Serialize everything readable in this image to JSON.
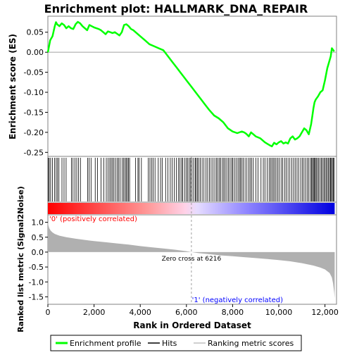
{
  "chart_data": {
    "type": "line",
    "title": "Enrichment plot: HALLMARK_DNA_REPAIR",
    "xlabel": "Rank in Ordered Dataset",
    "xlim": [
      0,
      12500
    ],
    "x_ticks": [
      0,
      2000,
      4000,
      6000,
      8000,
      10000,
      12000
    ],
    "x_tick_labels": [
      "0",
      "2,000",
      "4,000",
      "6,000",
      "8,000",
      "10,000",
      "12,000"
    ],
    "es_panel": {
      "ylabel": "Enrichment score (ES)",
      "ylim": [
        -0.26,
        0.09
      ],
      "y_ticks": [
        0.05,
        0.0,
        -0.05,
        -0.1,
        -0.15,
        -0.2,
        -0.25
      ],
      "y_tick_labels": [
        "0.05",
        "0.00",
        "-0.05",
        "-0.10",
        "-0.15",
        "-0.20",
        "-0.25"
      ],
      "series": [
        {
          "name": "Enrichment profile",
          "color": "#00ff00",
          "x": [
            0,
            100,
            200,
            300,
            350,
            400,
            500,
            600,
            700,
            800,
            900,
            1000,
            1100,
            1200,
            1300,
            1400,
            1500,
            1600,
            1700,
            1800,
            1900,
            2000,
            2100,
            2200,
            2300,
            2400,
            2500,
            2600,
            2700,
            2800,
            2900,
            3000,
            3100,
            3200,
            3300,
            3400,
            3500,
            3600,
            3700,
            3800,
            3900,
            4000,
            4200,
            4400,
            4600,
            4800,
            5000,
            5200,
            5400,
            5600,
            5800,
            6000,
            6200,
            6400,
            6600,
            6800,
            7000,
            7200,
            7400,
            7600,
            7800,
            8000,
            8200,
            8400,
            8500,
            8600,
            8700,
            8800,
            8900,
            9000,
            9200,
            9400,
            9600,
            9700,
            9800,
            9900,
            10000,
            10100,
            10200,
            10300,
            10400,
            10500,
            10600,
            10700,
            10800,
            10900,
            11000,
            11100,
            11200,
            11300,
            11400,
            11450,
            11500,
            11550,
            11600,
            11700,
            11800,
            11900,
            12000,
            12100,
            12200,
            12250,
            12300,
            12400
          ],
          "y": [
            0.0,
            0.03,
            0.04,
            0.065,
            0.075,
            0.07,
            0.065,
            0.072,
            0.068,
            0.06,
            0.065,
            0.06,
            0.058,
            0.07,
            0.076,
            0.072,
            0.065,
            0.06,
            0.055,
            0.068,
            0.065,
            0.062,
            0.06,
            0.058,
            0.055,
            0.05,
            0.045,
            0.052,
            0.05,
            0.048,
            0.05,
            0.046,
            0.042,
            0.05,
            0.068,
            0.07,
            0.065,
            0.058,
            0.055,
            0.05,
            0.045,
            0.04,
            0.03,
            0.02,
            0.015,
            0.01,
            0.005,
            -0.01,
            -0.025,
            -0.04,
            -0.055,
            -0.07,
            -0.085,
            -0.1,
            -0.115,
            -0.13,
            -0.145,
            -0.158,
            -0.165,
            -0.175,
            -0.19,
            -0.198,
            -0.202,
            -0.198,
            -0.2,
            -0.204,
            -0.21,
            -0.2,
            -0.205,
            -0.21,
            -0.215,
            -0.225,
            -0.232,
            -0.235,
            -0.226,
            -0.23,
            -0.225,
            -0.222,
            -0.228,
            -0.225,
            -0.228,
            -0.215,
            -0.21,
            -0.218,
            -0.215,
            -0.21,
            -0.2,
            -0.19,
            -0.195,
            -0.205,
            -0.18,
            -0.16,
            -0.14,
            -0.125,
            -0.118,
            -0.11,
            -0.1,
            -0.095,
            -0.07,
            -0.04,
            -0.02,
            -0.01,
            0.01,
            0.002
          ]
        }
      ]
    },
    "hits_panel": {
      "legend_label": "Hits",
      "color": "#000000",
      "positions": [
        20,
        60,
        120,
        200,
        290,
        360,
        420,
        480,
        610,
        700,
        790,
        1020,
        1090,
        1170,
        1250,
        1330,
        1410,
        1720,
        1790,
        1870,
        2050,
        2150,
        2300,
        2420,
        2530,
        2610,
        2680,
        2740,
        2800,
        2860,
        2930,
        3000,
        3060,
        3130,
        3220,
        3280,
        3340,
        3390,
        3440,
        3490,
        3540,
        3800,
        3900,
        3950,
        4050,
        4350,
        4420,
        4490,
        4560,
        4640,
        4780,
        4880,
        4950,
        5100,
        5200,
        5300,
        5380,
        5470,
        5560,
        5650,
        5720,
        5790,
        5840,
        5920,
        5990,
        6050,
        6120,
        6170,
        6240,
        6310,
        6380,
        6420,
        6480,
        6530,
        6600,
        6680,
        6760,
        6850,
        6920,
        7000,
        7070,
        7150,
        7230,
        7300,
        7360,
        7430,
        7480,
        7560,
        7620,
        7680,
        7750,
        7820,
        7890,
        7960,
        8010,
        8080,
        8150,
        8230,
        8290,
        8340,
        8400,
        8460,
        8540,
        8620,
        8700,
        8760,
        8830,
        8900,
        9010,
        9100,
        9230,
        9330,
        9400,
        9500,
        9580,
        9640,
        9700,
        9760,
        9820,
        9880,
        9950,
        10020,
        10100,
        10170,
        10250,
        10320,
        10400,
        10480,
        10560,
        10640,
        10710,
        10790,
        10860,
        10950,
        11020,
        11090,
        11160,
        11230,
        11300,
        11370,
        11420,
        11460,
        11500,
        11540,
        11580,
        11620,
        11670,
        11720,
        11780,
        11840,
        11890,
        11950,
        12000,
        12050,
        12100,
        12150,
        12200,
        12240,
        12280,
        12320,
        12360,
        12400
      ]
    },
    "metric_panel": {
      "ylabel": "Ranked list metric (Signal2Noise)",
      "legend_label": "Ranking metric scores",
      "color": "#b0b0b0",
      "ylim": [
        -1.75,
        1.25
      ],
      "y_ticks": [
        1.0,
        0.5,
        0.0,
        -0.5,
        -1.0,
        -1.5
      ],
      "y_tick_labels": [
        "1.0",
        "0.5",
        "0.0",
        "-0.5",
        "-1.0",
        "-1.5"
      ],
      "x": [
        0,
        20,
        60,
        120,
        200,
        300,
        500,
        800,
        1200,
        1600,
        2000,
        2500,
        3000,
        3500,
        4000,
        4500,
        5000,
        5500,
        6000,
        6216,
        6500,
        7000,
        7500,
        8000,
        8500,
        9000,
        9500,
        10000,
        10500,
        11000,
        11500,
        11800,
        12000,
        12200,
        12300,
        12350,
        12400,
        12420
      ],
      "y": [
        1.02,
        0.9,
        0.8,
        0.72,
        0.66,
        0.61,
        0.55,
        0.5,
        0.45,
        0.41,
        0.37,
        0.33,
        0.29,
        0.25,
        0.2,
        0.16,
        0.12,
        0.08,
        0.03,
        0.0,
        -0.03,
        -0.07,
        -0.11,
        -0.14,
        -0.17,
        -0.2,
        -0.23,
        -0.27,
        -0.31,
        -0.37,
        -0.45,
        -0.52,
        -0.58,
        -0.7,
        -0.85,
        -1.05,
        -1.35,
        -1.55
      ],
      "zero_cross_rank": 6216,
      "zero_cross_label": "Zero cross at 6216",
      "pos_label": "'0' (positively correlated)",
      "neg_label": "'1' (negatively correlated)",
      "pos_color": "#ff0000",
      "neg_color": "#0000ff"
    },
    "legend": {
      "placement": "bottom",
      "entries": [
        "Enrichment profile",
        "Hits",
        "Ranking metric scores"
      ]
    }
  }
}
